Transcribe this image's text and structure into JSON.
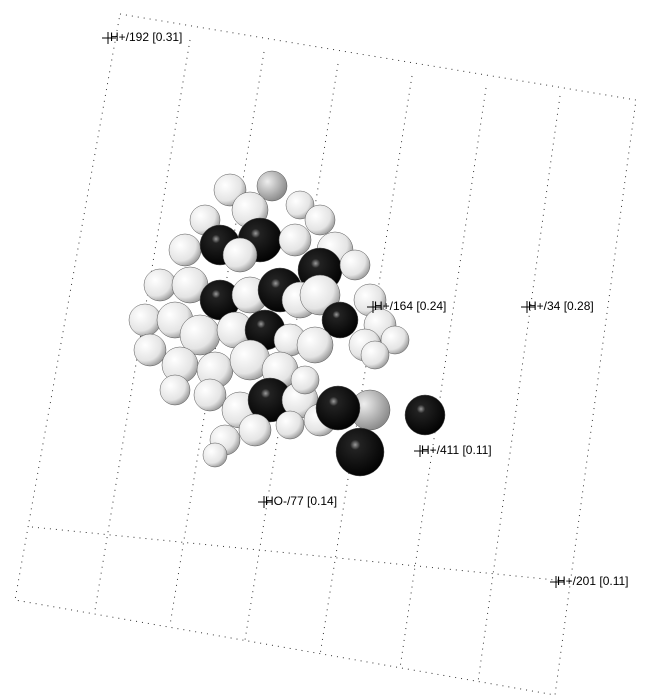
{
  "labels": [
    "H+/192 [0.31]",
    "H+/164 [0.24]",
    "H+/34 [0.28]",
    "H+/411 [0.11]",
    "HO-/77 [0.14]",
    "H+/201 [0.11]"
  ]
}
